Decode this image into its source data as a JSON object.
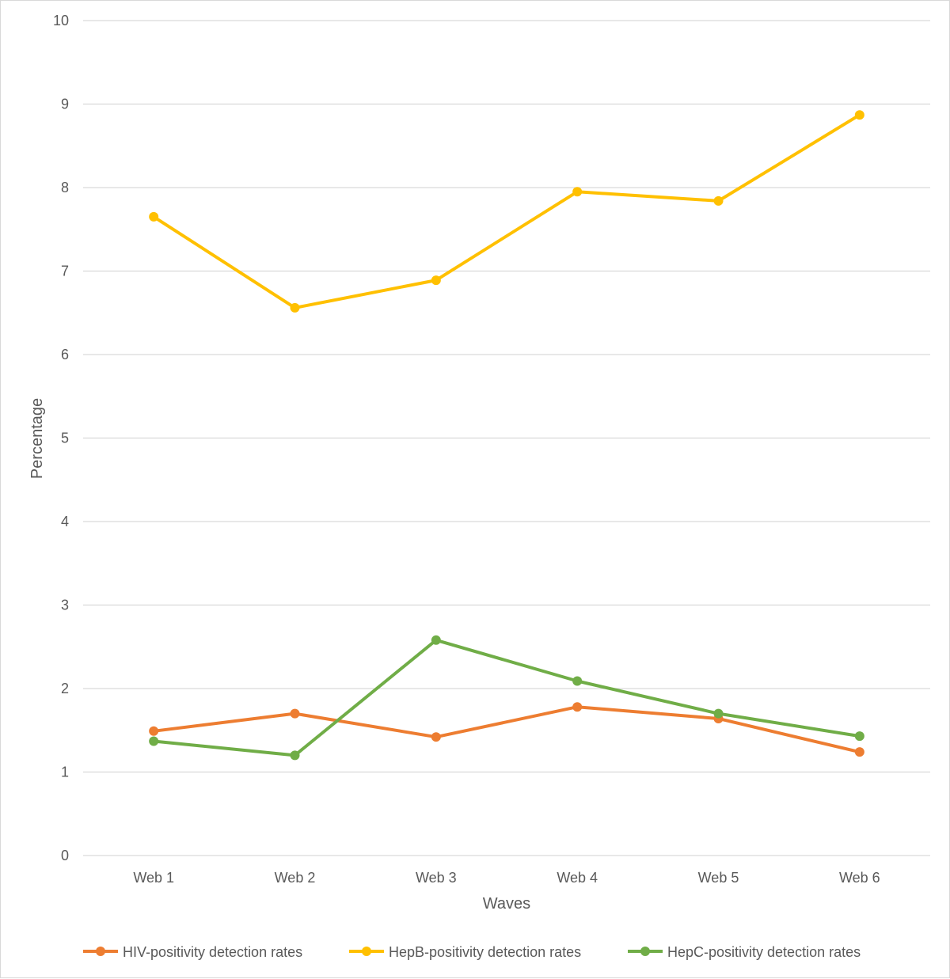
{
  "chart_data": {
    "type": "line",
    "title": "",
    "xlabel": "Waves",
    "ylabel": "Percentage",
    "categories": [
      "Web 1",
      "Web 2",
      "Web 3",
      "Web 4",
      "Web 5",
      "Web 6"
    ],
    "ylim": [
      0,
      10
    ],
    "yticks": [
      "0",
      "1",
      "2",
      "3",
      "4",
      "5",
      "6",
      "7",
      "8",
      "9",
      "10"
    ],
    "grid": true,
    "legend_position": "bottom",
    "series": [
      {
        "name": "HIV-positivity detection rates",
        "color": "#ED7D31",
        "values": [
          1.49,
          1.7,
          1.42,
          1.78,
          1.64,
          1.24
        ]
      },
      {
        "name": "HepB-positivity detection rates",
        "color": "#FFC000",
        "values": [
          7.65,
          6.56,
          6.89,
          7.95,
          7.84,
          8.87
        ]
      },
      {
        "name": "HepC-positivity detection rates",
        "color": "#70AD47",
        "values": [
          1.37,
          1.2,
          2.58,
          2.09,
          1.7,
          1.43
        ]
      }
    ]
  }
}
